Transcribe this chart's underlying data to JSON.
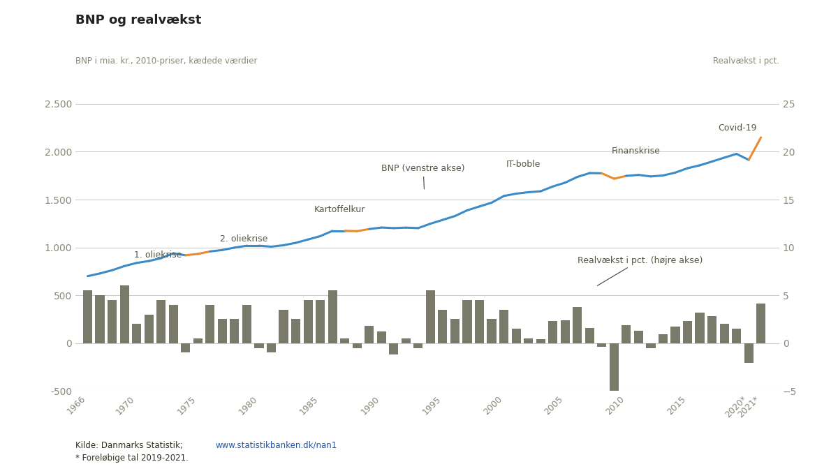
{
  "title": "BNP og realvækst",
  "left_axis_label": "BNP i mia. kr., 2010-priser, kædede værdier",
  "right_axis_label": "Realvækst i pct.",
  "years": [
    1966,
    1967,
    1968,
    1969,
    1970,
    1971,
    1972,
    1973,
    1974,
    1975,
    1976,
    1977,
    1978,
    1979,
    1980,
    1981,
    1982,
    1983,
    1984,
    1985,
    1986,
    1987,
    1988,
    1989,
    1990,
    1991,
    1992,
    1993,
    1994,
    1995,
    1996,
    1997,
    1998,
    1999,
    2000,
    2001,
    2002,
    2003,
    2004,
    2005,
    2006,
    2007,
    2008,
    2009,
    2010,
    2011,
    2012,
    2013,
    2014,
    2015,
    2016,
    2017,
    2018,
    2019,
    2020,
    2021
  ],
  "bnp": [
    700,
    728,
    762,
    805,
    838,
    858,
    888,
    938,
    918,
    932,
    958,
    973,
    998,
    1018,
    1018,
    1008,
    1023,
    1048,
    1083,
    1118,
    1173,
    1173,
    1170,
    1192,
    1208,
    1202,
    1207,
    1202,
    1248,
    1288,
    1328,
    1388,
    1428,
    1468,
    1538,
    1562,
    1577,
    1587,
    1637,
    1677,
    1737,
    1777,
    1775,
    1718,
    1748,
    1758,
    1742,
    1752,
    1782,
    1828,
    1858,
    1898,
    1938,
    1978,
    1915,
    2150
  ],
  "bnp_color_highlight": [
    false,
    false,
    false,
    false,
    false,
    false,
    false,
    false,
    true,
    true,
    false,
    false,
    false,
    false,
    false,
    false,
    false,
    false,
    false,
    false,
    false,
    true,
    true,
    false,
    false,
    false,
    false,
    false,
    false,
    false,
    false,
    false,
    false,
    false,
    false,
    false,
    false,
    false,
    false,
    false,
    false,
    false,
    true,
    true,
    false,
    false,
    false,
    false,
    false,
    false,
    false,
    false,
    false,
    false,
    true,
    true
  ],
  "growth": [
    5.5,
    5.0,
    4.5,
    6.0,
    2.0,
    3.0,
    4.5,
    4.0,
    -1.0,
    0.5,
    4.0,
    2.5,
    2.5,
    4.0,
    -0.5,
    -1.0,
    3.5,
    2.5,
    4.5,
    4.5,
    5.5,
    0.5,
    -0.5,
    1.8,
    1.2,
    -1.2,
    0.5,
    -0.5,
    5.5,
    3.5,
    2.5,
    4.5,
    4.5,
    2.5,
    3.5,
    1.5,
    0.5,
    0.4,
    2.3,
    2.4,
    3.8,
    1.6,
    -0.4,
    -5.1,
    1.9,
    1.3,
    -0.5,
    0.9,
    1.7,
    2.3,
    3.2,
    2.8,
    2.0,
    1.5,
    -2.1,
    4.1
  ],
  "bnp_line_color": "#3b8bc8",
  "bnp_highlight_color": "#e88b2e",
  "bar_color": "#7a7a6a",
  "background_color": "#ffffff",
  "ylim_left": [
    -500,
    2700
  ],
  "ylim_right": [
    -5,
    27
  ],
  "yticks_left": [
    2500,
    2000,
    1500,
    1000,
    500,
    0,
    -500
  ],
  "yticks_right": [
    25,
    20,
    15,
    10,
    5,
    0,
    -5
  ],
  "xtick_years": [
    1966,
    1970,
    1975,
    1980,
    1985,
    1990,
    1995,
    2000,
    2005,
    2010,
    2015,
    2020,
    2021
  ],
  "grid_color": "#cccccc",
  "tick_color": "#888878",
  "text_color": "#555545",
  "ann_color": "#555545"
}
